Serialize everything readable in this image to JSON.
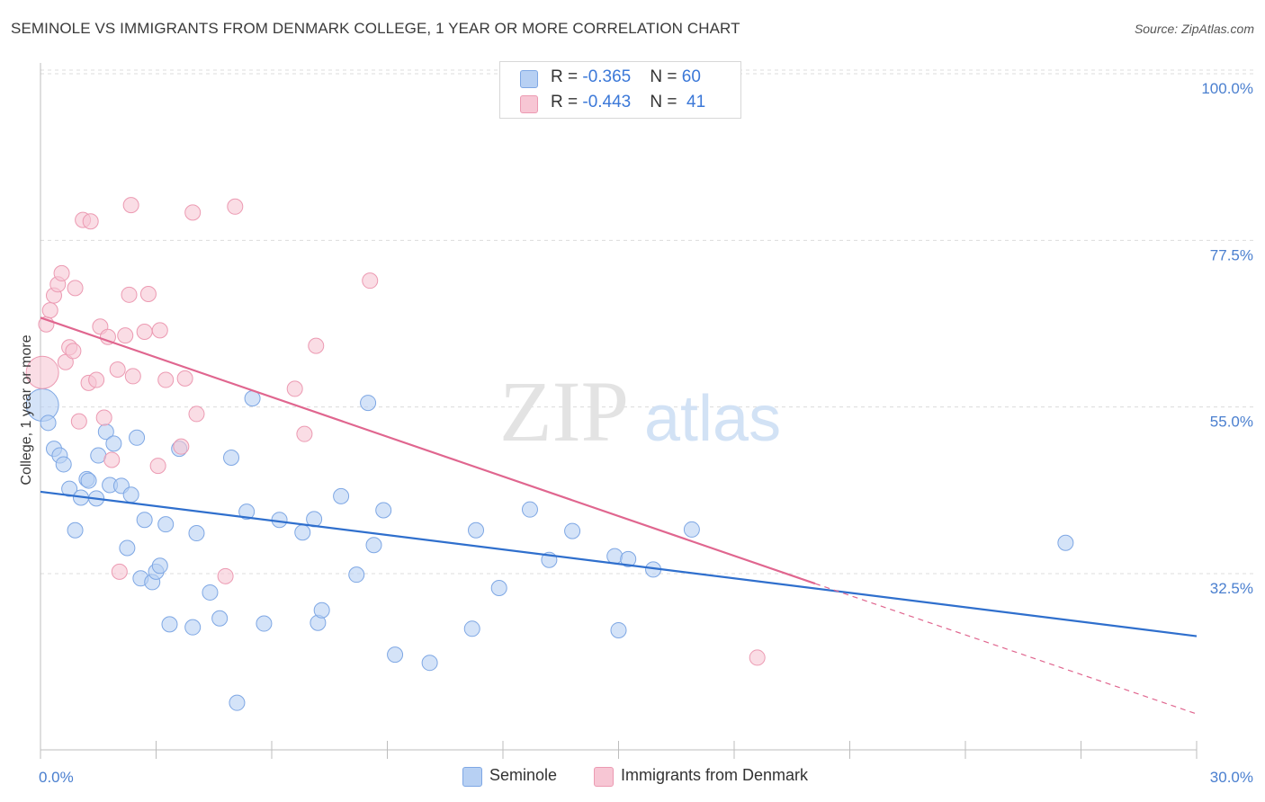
{
  "title": "SEMINOLE VS IMMIGRANTS FROM DENMARK COLLEGE, 1 YEAR OR MORE CORRELATION CHART",
  "source": "Source: ZipAtlas.com",
  "watermark": {
    "zip": "ZIP",
    "atlas": "atlas"
  },
  "colors": {
    "blue_fill": "#b7d0f3",
    "blue_stroke": "#7ea7e4",
    "blue_line": "#2f6fcd",
    "pink_fill": "#f7c6d4",
    "pink_stroke": "#ec9ab2",
    "pink_line": "#e0668f",
    "tick_text": "#4a7fcf",
    "grid": "#dcdcdc"
  },
  "legend": {
    "rows": [
      {
        "r_label": "R = ",
        "r_value": "-0.365",
        "n_label": "N = ",
        "n_value": "60"
      },
      {
        "r_label": "R = ",
        "r_value": "-0.443",
        "n_label": "N = ",
        "n_value": "41"
      }
    ]
  },
  "bottom_legend": {
    "series1": "Seminole",
    "series2": "Immigrants from Denmark"
  },
  "chart_data": {
    "type": "scatter",
    "title": "SEMINOLE VS IMMIGRANTS FROM DENMARK COLLEGE, 1 YEAR OR MORE CORRELATION CHART",
    "xlabel": "",
    "ylabel": "College, 1 year or more",
    "xlim": [
      0,
      30
    ],
    "ylim": [
      10,
      105
    ],
    "x_tick_labels": [
      "0.0%",
      "30.0%"
    ],
    "y_ticks": [
      100.0,
      77.5,
      55.0,
      32.5
    ],
    "y_tick_labels": [
      "100.0%",
      "77.5%",
      "55.0%",
      "32.5%"
    ],
    "grid": "horizontal dashed",
    "legend_position": "top-center",
    "series": [
      {
        "name": "Seminole",
        "r": -0.365,
        "n": 60,
        "trend": {
          "x": [
            0,
            30
          ],
          "y": [
            45.5,
            26.0
          ]
        },
        "points": [
          {
            "x": 0.05,
            "y": 57.2,
            "big": true
          },
          {
            "x": 0.2,
            "y": 54.8
          },
          {
            "x": 0.35,
            "y": 51.3
          },
          {
            "x": 0.5,
            "y": 50.4
          },
          {
            "x": 0.6,
            "y": 49.2
          },
          {
            "x": 0.75,
            "y": 45.9
          },
          {
            "x": 0.9,
            "y": 40.3
          },
          {
            "x": 1.05,
            "y": 44.7
          },
          {
            "x": 1.2,
            "y": 47.2
          },
          {
            "x": 1.25,
            "y": 47.0
          },
          {
            "x": 1.45,
            "y": 44.6
          },
          {
            "x": 1.5,
            "y": 50.4
          },
          {
            "x": 1.7,
            "y": 53.6
          },
          {
            "x": 1.8,
            "y": 46.4
          },
          {
            "x": 1.9,
            "y": 52.0
          },
          {
            "x": 2.1,
            "y": 46.3
          },
          {
            "x": 2.25,
            "y": 37.9
          },
          {
            "x": 2.35,
            "y": 45.1
          },
          {
            "x": 2.5,
            "y": 52.8
          },
          {
            "x": 2.6,
            "y": 33.8
          },
          {
            "x": 2.7,
            "y": 41.7
          },
          {
            "x": 2.9,
            "y": 33.3
          },
          {
            "x": 3.0,
            "y": 34.7
          },
          {
            "x": 3.1,
            "y": 35.5
          },
          {
            "x": 3.25,
            "y": 41.1
          },
          {
            "x": 3.35,
            "y": 27.6
          },
          {
            "x": 3.6,
            "y": 51.3
          },
          {
            "x": 3.95,
            "y": 27.2
          },
          {
            "x": 4.05,
            "y": 39.9
          },
          {
            "x": 4.4,
            "y": 31.9
          },
          {
            "x": 4.65,
            "y": 28.4
          },
          {
            "x": 4.95,
            "y": 50.1
          },
          {
            "x": 5.1,
            "y": 17.0
          },
          {
            "x": 5.35,
            "y": 42.8
          },
          {
            "x": 5.5,
            "y": 58.1
          },
          {
            "x": 5.8,
            "y": 27.7
          },
          {
            "x": 6.2,
            "y": 41.7
          },
          {
            "x": 6.8,
            "y": 40.0
          },
          {
            "x": 7.1,
            "y": 41.8
          },
          {
            "x": 7.2,
            "y": 27.8
          },
          {
            "x": 7.3,
            "y": 29.5
          },
          {
            "x": 7.8,
            "y": 44.9
          },
          {
            "x": 8.2,
            "y": 34.3
          },
          {
            "x": 8.5,
            "y": 57.5
          },
          {
            "x": 8.65,
            "y": 38.3
          },
          {
            "x": 8.9,
            "y": 43.0
          },
          {
            "x": 9.2,
            "y": 23.5
          },
          {
            "x": 10.1,
            "y": 22.4
          },
          {
            "x": 11.2,
            "y": 27.0
          },
          {
            "x": 11.3,
            "y": 40.3
          },
          {
            "x": 11.9,
            "y": 32.5
          },
          {
            "x": 12.7,
            "y": 43.1
          },
          {
            "x": 13.2,
            "y": 36.3
          },
          {
            "x": 13.8,
            "y": 40.2
          },
          {
            "x": 14.9,
            "y": 36.8
          },
          {
            "x": 15.0,
            "y": 26.8
          },
          {
            "x": 15.25,
            "y": 36.4
          },
          {
            "x": 15.9,
            "y": 35.0
          },
          {
            "x": 16.9,
            "y": 40.4
          },
          {
            "x": 26.6,
            "y": 38.6
          }
        ]
      },
      {
        "name": "Immigrants from Denmark",
        "r": -0.443,
        "n": 41,
        "trend": {
          "x": [
            0,
            20.1
          ],
          "y": [
            69.0,
            33.1
          ]
        },
        "trend_dashed": {
          "x": [
            20.1,
            30
          ],
          "y": [
            33.1,
            15.5
          ]
        },
        "points": [
          {
            "x": 0.05,
            "y": 61.6,
            "big": true
          },
          {
            "x": 0.15,
            "y": 68.1
          },
          {
            "x": 0.25,
            "y": 70.0
          },
          {
            "x": 0.35,
            "y": 72.0
          },
          {
            "x": 0.45,
            "y": 73.5
          },
          {
            "x": 0.55,
            "y": 75.0
          },
          {
            "x": 0.65,
            "y": 63.0
          },
          {
            "x": 0.75,
            "y": 65.0
          },
          {
            "x": 0.85,
            "y": 64.5
          },
          {
            "x": 0.9,
            "y": 73.0
          },
          {
            "x": 1.0,
            "y": 55.0
          },
          {
            "x": 1.1,
            "y": 82.2
          },
          {
            "x": 1.25,
            "y": 60.2
          },
          {
            "x": 1.3,
            "y": 82.0
          },
          {
            "x": 1.45,
            "y": 60.6
          },
          {
            "x": 1.55,
            "y": 67.8
          },
          {
            "x": 1.65,
            "y": 55.5
          },
          {
            "x": 1.75,
            "y": 66.4
          },
          {
            "x": 1.85,
            "y": 49.8
          },
          {
            "x": 2.0,
            "y": 62.0
          },
          {
            "x": 2.05,
            "y": 34.7
          },
          {
            "x": 2.2,
            "y": 66.6
          },
          {
            "x": 2.3,
            "y": 72.1
          },
          {
            "x": 2.35,
            "y": 84.2
          },
          {
            "x": 2.4,
            "y": 61.1
          },
          {
            "x": 2.7,
            "y": 67.1
          },
          {
            "x": 2.8,
            "y": 72.2
          },
          {
            "x": 3.05,
            "y": 49.0
          },
          {
            "x": 3.1,
            "y": 67.3
          },
          {
            "x": 3.25,
            "y": 60.6
          },
          {
            "x": 3.65,
            "y": 51.6
          },
          {
            "x": 3.75,
            "y": 60.8
          },
          {
            "x": 3.95,
            "y": 83.2
          },
          {
            "x": 4.05,
            "y": 56.0
          },
          {
            "x": 4.8,
            "y": 34.1
          },
          {
            "x": 5.05,
            "y": 84.0
          },
          {
            "x": 6.6,
            "y": 59.4
          },
          {
            "x": 6.85,
            "y": 53.3
          },
          {
            "x": 7.15,
            "y": 65.2
          },
          {
            "x": 8.55,
            "y": 74.0
          },
          {
            "x": 18.6,
            "y": 23.1
          }
        ]
      }
    ]
  }
}
